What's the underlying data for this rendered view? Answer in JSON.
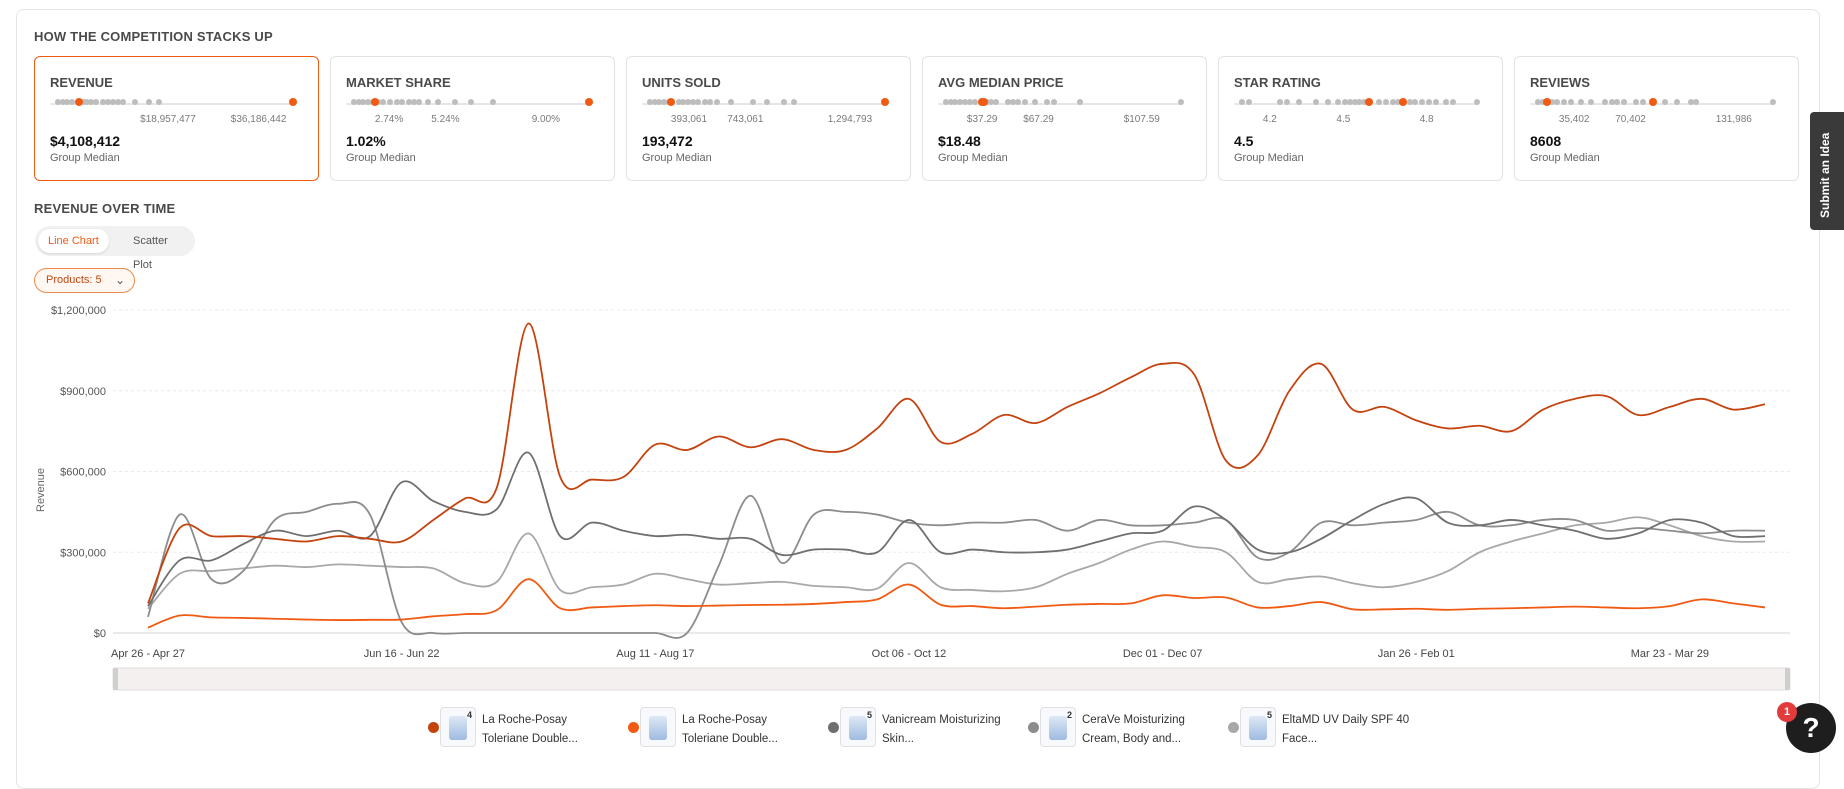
{
  "competition": {
    "title": "HOW THE COMPETITION STACKS UP",
    "cards": [
      {
        "label": "REVENUE",
        "value": "$4,108,412",
        "sub": "Group Median",
        "active": true,
        "ticks": [
          "$18,957,477",
          "$36,186,442"
        ],
        "dots": [
          0.02,
          0.04,
          0.06,
          0.08,
          0.11,
          0.13,
          0.14,
          0.16,
          0.18,
          0.21,
          0.23,
          0.25,
          0.27,
          0.29,
          0.34,
          0.4,
          0.44
        ],
        "highlight": [
          0.11,
          1.0
        ]
      },
      {
        "label": "MARKET SHARE",
        "value": "1.02%",
        "sub": "Group Median",
        "ticks": [
          "2.74%",
          "5.24%",
          "9.00%"
        ],
        "dots": [
          0.02,
          0.04,
          0.06,
          0.08,
          0.1,
          0.12,
          0.14,
          0.17,
          0.2,
          0.22,
          0.25,
          0.27,
          0.29,
          0.33,
          0.37,
          0.44,
          0.51,
          0.6
        ],
        "highlight": [
          0.11,
          1.0
        ]
      },
      {
        "label": "UNITS SOLD",
        "value": "193,472",
        "sub": "Group Median",
        "ticks": [
          "393,061",
          "743,061",
          "1,294,793"
        ],
        "dots": [
          0.02,
          0.04,
          0.06,
          0.08,
          0.1,
          0.14,
          0.16,
          0.18,
          0.2,
          0.22,
          0.25,
          0.27,
          0.3,
          0.36,
          0.45,
          0.51,
          0.58,
          0.62
        ],
        "highlight": [
          0.11,
          1.0
        ]
      },
      {
        "label": "AVG MEDIAN PRICE",
        "value": "$18.48",
        "sub": "Group Median",
        "ticks": [
          "$37.29",
          "$67.29",
          "$107.59"
        ],
        "dots": [
          0.02,
          0.04,
          0.06,
          0.08,
          0.1,
          0.12,
          0.14,
          0.19,
          0.21,
          0.23,
          0.28,
          0.3,
          0.32,
          0.35,
          0.39,
          0.44,
          0.47,
          0.58,
          1.0
        ],
        "highlight": [
          0.17,
          0.18
        ]
      },
      {
        "label": "STAR RATING",
        "value": "4.5",
        "sub": "Group Median",
        "ticks": [
          "4.2",
          "4.5",
          "4.8"
        ],
        "dots": [
          0.02,
          0.05,
          0.18,
          0.21,
          0.26,
          0.33,
          0.38,
          0.42,
          0.45,
          0.47,
          0.49,
          0.51,
          0.53,
          0.55,
          0.59,
          0.62,
          0.65,
          0.67,
          0.69,
          0.72,
          0.74,
          0.77,
          0.8,
          0.83,
          0.87,
          0.9,
          1.0
        ],
        "highlight": [
          0.55,
          0.69
        ]
      },
      {
        "label": "REVIEWS",
        "value": "8608",
        "sub": "Group Median",
        "ticks": [
          "35,402",
          "70,402",
          "131,986"
        ],
        "dots": [
          0.02,
          0.04,
          0.06,
          0.08,
          0.1,
          0.13,
          0.16,
          0.2,
          0.24,
          0.3,
          0.33,
          0.35,
          0.38,
          0.43,
          0.46,
          0.55,
          0.6,
          0.66,
          0.68,
          1.0
        ],
        "highlight": [
          0.06,
          0.5
        ]
      }
    ]
  },
  "revenue_section": {
    "title": "REVENUE OVER TIME",
    "toggle": {
      "line": "Line Chart",
      "scatter": "Scatter Plot"
    },
    "filter_label": "Products: 5"
  },
  "colors": {
    "accent": "#f05a12",
    "dark_orange": "#c4430f",
    "grey1": "#6f6f6f",
    "grey2": "#8c8c8c",
    "grey3": "#a8a8a8"
  },
  "chart_data": {
    "type": "line",
    "ylabel": "Revenue",
    "ylim": [
      0,
      1200000
    ],
    "y_ticks": [
      "$1,200,000",
      "$900,000",
      "$600,000",
      "$300,000",
      "$0"
    ],
    "x_tick_labels": [
      "Apr 26 - Apr 27",
      "Jun 16 - Jun 22",
      "Aug 11 - Aug 17",
      "Oct 06 - Oct 12",
      "Dec 01 - Dec 07",
      "Jan 26 - Feb 01",
      "Mar 23 - Mar 29"
    ],
    "x_tick_index": [
      0,
      8,
      16,
      24,
      32,
      40,
      48
    ],
    "n_points": 52,
    "series": [
      {
        "name": "La Roche-Posay Toleriane Double...",
        "color": "#c4430f",
        "count": "4",
        "values": [
          110000,
          390000,
          360000,
          360000,
          350000,
          340000,
          360000,
          350000,
          340000,
          420000,
          500000,
          540000,
          1150000,
          580000,
          570000,
          580000,
          700000,
          680000,
          730000,
          690000,
          720000,
          680000,
          680000,
          760000,
          870000,
          710000,
          740000,
          810000,
          780000,
          840000,
          890000,
          950000,
          1000000,
          960000,
          640000,
          660000,
          900000,
          1000000,
          830000,
          840000,
          790000,
          760000,
          770000,
          750000,
          830000,
          870000,
          880000,
          810000,
          840000,
          870000,
          830000,
          850000
        ]
      },
      {
        "name": "La Roche-Posay Toleriane Double...",
        "color": "#f05a12",
        "count": "",
        "values": [
          20000,
          65000,
          58000,
          56000,
          53000,
          50000,
          48000,
          49000,
          50000,
          62000,
          70000,
          85000,
          200000,
          92000,
          95000,
          100000,
          103000,
          100000,
          102000,
          104000,
          105000,
          108000,
          115000,
          125000,
          180000,
          105000,
          100000,
          92000,
          98000,
          105000,
          108000,
          110000,
          140000,
          130000,
          132000,
          95000,
          100000,
          115000,
          88000,
          88000,
          90000,
          86000,
          90000,
          92000,
          95000,
          98000,
          95000,
          92000,
          100000,
          125000,
          110000,
          95000
        ]
      },
      {
        "name": "Vanicream Moisturizing Skin...",
        "color": "#6f6f6f",
        "count": "5",
        "values": [
          100000,
          270000,
          270000,
          330000,
          380000,
          360000,
          380000,
          360000,
          560000,
          490000,
          450000,
          460000,
          670000,
          360000,
          410000,
          380000,
          360000,
          365000,
          350000,
          350000,
          290000,
          310000,
          310000,
          300000,
          420000,
          300000,
          310000,
          300000,
          300000,
          310000,
          340000,
          370000,
          380000,
          470000,
          420000,
          310000,
          300000,
          350000,
          420000,
          480000,
          500000,
          410000,
          400000,
          420000,
          400000,
          380000,
          350000,
          370000,
          420000,
          410000,
          360000,
          360000
        ]
      },
      {
        "name": "CeraVe Moisturizing Cream, Body and...",
        "color": "#8c8c8c",
        "count": "2",
        "values": [
          60000,
          440000,
          200000,
          230000,
          420000,
          450000,
          480000,
          440000,
          40000,
          0,
          0,
          0,
          0,
          0,
          0,
          0,
          0,
          0,
          250000,
          510000,
          260000,
          440000,
          450000,
          440000,
          410000,
          400000,
          410000,
          410000,
          420000,
          380000,
          420000,
          400000,
          400000,
          410000,
          420000,
          280000,
          300000,
          410000,
          400000,
          410000,
          420000,
          450000,
          400000,
          400000,
          420000,
          420000,
          380000,
          390000,
          380000,
          370000,
          380000,
          380000
        ]
      },
      {
        "name": "EltaMD UV Daily SPF 40 Face...",
        "color": "#a8a8a8",
        "count": "5",
        "values": [
          90000,
          220000,
          230000,
          240000,
          250000,
          245000,
          255000,
          250000,
          245000,
          240000,
          185000,
          190000,
          370000,
          160000,
          170000,
          180000,
          220000,
          200000,
          180000,
          185000,
          190000,
          175000,
          170000,
          165000,
          260000,
          170000,
          160000,
          155000,
          170000,
          220000,
          260000,
          310000,
          340000,
          320000,
          300000,
          190000,
          200000,
          210000,
          185000,
          170000,
          190000,
          230000,
          300000,
          340000,
          370000,
          400000,
          410000,
          430000,
          400000,
          360000,
          340000,
          340000
        ]
      }
    ]
  },
  "side_tab": "Submit an Idea",
  "help": {
    "glyph": "?",
    "badge": "1"
  }
}
